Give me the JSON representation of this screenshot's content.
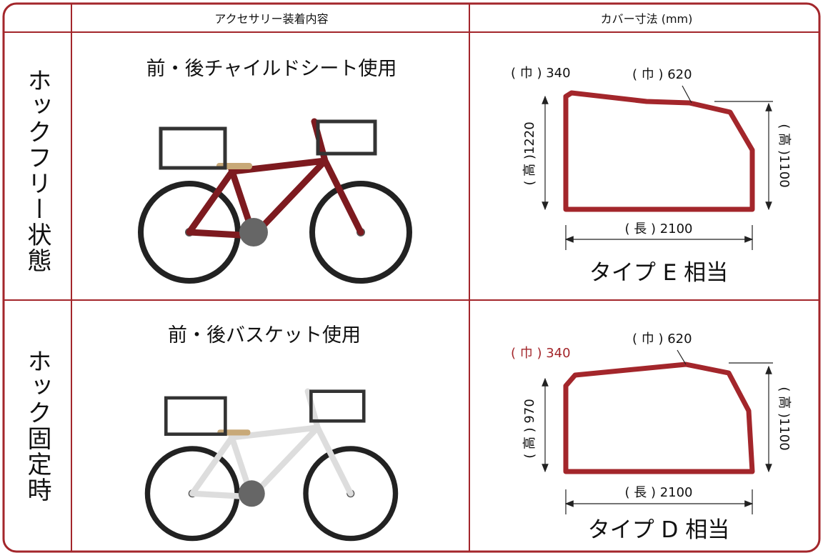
{
  "header": {
    "accessory": "アクセサリー装着内容",
    "cover": "カバー寸法 (mm)"
  },
  "rows": [
    {
      "label": "ホックフリー状態",
      "accessory": "前・後チャイルドシート使用",
      "dims": {
        "width_rear": "( 巾 ) 340",
        "width_front": "( 巾 ) 620",
        "height_rear": "( 高 )1220",
        "height_front": "( 高 )1100",
        "length": "( 長 ) 2100"
      },
      "type": "タイプ E 相当"
    },
    {
      "label": "ホック固定時",
      "accessory": "前・後バスケット使用",
      "dims": {
        "width_rear": "( 巾 ) 340",
        "width_front": "( 巾 ) 620",
        "height_rear": "( 高 ) 970",
        "height_front": "( 高 )1100",
        "length": "( 長 ) 2100"
      },
      "type": "タイプ D 相当"
    }
  ]
}
